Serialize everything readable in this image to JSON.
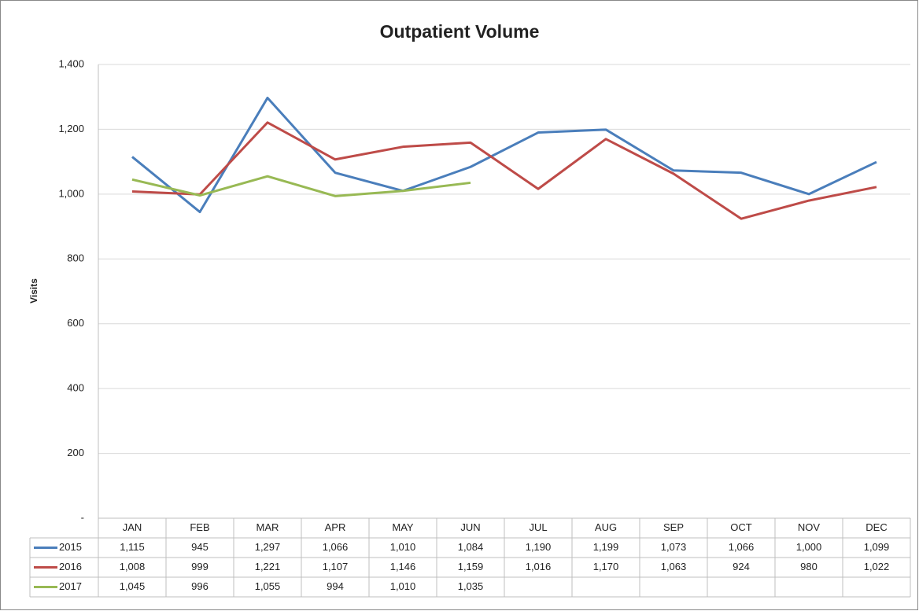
{
  "chart_data": {
    "type": "line",
    "title": "Outpatient Volume",
    "y_label": "Visits",
    "categories": [
      "JAN",
      "FEB",
      "MAR",
      "APR",
      "MAY",
      "JUN",
      "JUL",
      "AUG",
      "SEP",
      "OCT",
      "NOV",
      "DEC"
    ],
    "series": [
      {
        "name": "2015",
        "color": "#4a7ebb",
        "values": [
          1115,
          945,
          1297,
          1066,
          1010,
          1084,
          1190,
          1199,
          1073,
          1066,
          1000,
          1099
        ],
        "value_labels": [
          "1,115",
          "945",
          "1,297",
          "1,066",
          "1,010",
          "1,084",
          "1,190",
          "1,199",
          "1,073",
          "1,066",
          "1,000",
          "1,099"
        ]
      },
      {
        "name": "2016",
        "color": "#be4b48",
        "values": [
          1008,
          999,
          1221,
          1107,
          1146,
          1159,
          1016,
          1170,
          1063,
          924,
          980,
          1022
        ],
        "value_labels": [
          "1,008",
          "999",
          "1,221",
          "1,107",
          "1,146",
          "1,159",
          "1,016",
          "1,170",
          "1,063",
          "924",
          "980",
          "1,022"
        ]
      },
      {
        "name": "2017",
        "color": "#98b954",
        "values": [
          1045,
          996,
          1055,
          994,
          1010,
          1035,
          null,
          null,
          null,
          null,
          null,
          null
        ],
        "value_labels": [
          "1,045",
          "996",
          "1,055",
          "994",
          "1,010",
          "1,035",
          null,
          null,
          null,
          null,
          null,
          null
        ]
      }
    ],
    "ylim": [
      0,
      1400
    ],
    "yticks": [
      {
        "value": 0,
        "label": "-"
      },
      200,
      400,
      600,
      800,
      {
        "value": 1000,
        "label": "1,000"
      },
      {
        "value": 1200,
        "label": "1,200"
      },
      {
        "value": 1400,
        "label": "1,400"
      }
    ],
    "grid": true
  }
}
